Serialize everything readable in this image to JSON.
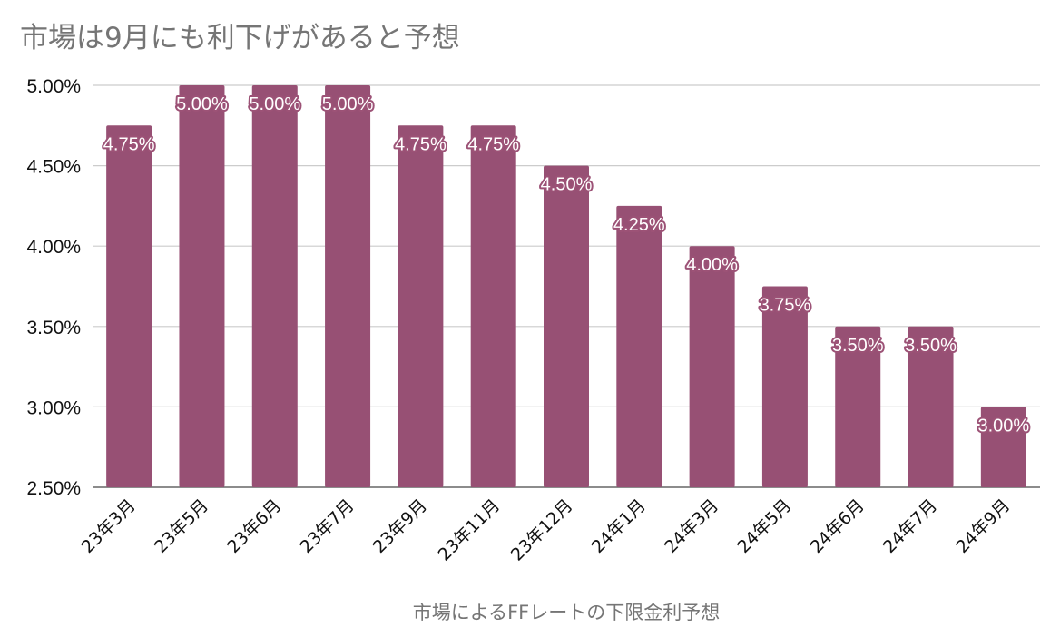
{
  "chart_data": {
    "type": "bar",
    "title": "市場は9月にも利下げがあると予想",
    "xlabel": "市場によるFFレートの下限金利予想",
    "ylabel": "",
    "categories": [
      "23年3月",
      "23年5月",
      "23年6月",
      "23年7月",
      "23年9月",
      "23年11月",
      "23年12月",
      "24年1月",
      "24年3月",
      "24年5月",
      "24年6月",
      "24年7月",
      "24年9月"
    ],
    "values": [
      4.75,
      5.0,
      5.0,
      5.0,
      4.75,
      4.75,
      4.5,
      4.25,
      4.0,
      3.75,
      3.5,
      3.5,
      3.0
    ],
    "data_labels": [
      "4.75%",
      "5.00%",
      "5.00%",
      "5.00%",
      "4.75%",
      "4.75%",
      "4.50%",
      "4.25%",
      "4.00%",
      "3.75%",
      "3.50%",
      "3.50%",
      "3.00%"
    ],
    "y_ticks": [
      2.5,
      3.0,
      3.5,
      4.0,
      4.5,
      5.0
    ],
    "y_tick_labels": [
      "2.50%",
      "3.00%",
      "3.50%",
      "4.00%",
      "4.50%",
      "5.00%"
    ],
    "ylim": [
      2.5,
      5.0
    ],
    "grid": true,
    "legend": "none",
    "bar_color": "#975074",
    "gridline_color": "#cccccc",
    "title_color": "#757575"
  }
}
